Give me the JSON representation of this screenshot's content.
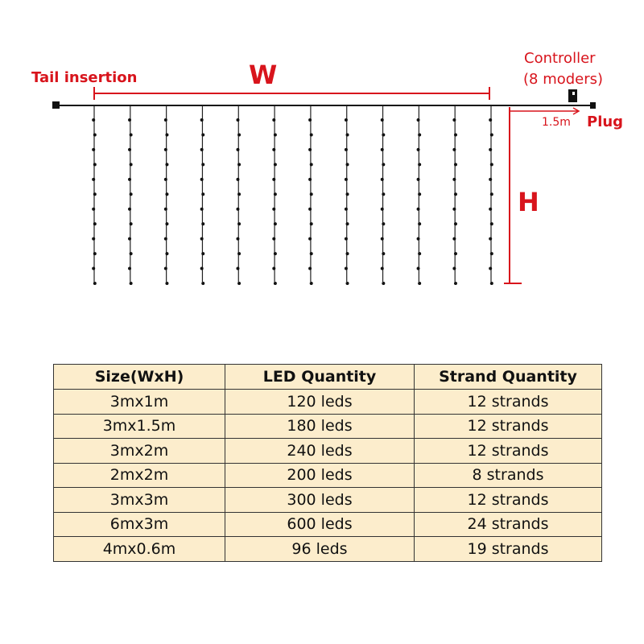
{
  "diagram": {
    "labels": {
      "tail": "Tail insertion",
      "width": "W",
      "height": "H",
      "controller_line1": "Controller",
      "controller_line2": "(8 moders)",
      "cable_length": "1.5m",
      "plug": "Plug"
    },
    "strand_count": 12,
    "bulbs_per_strand": 12,
    "colors": {
      "annotation": "#d8141c",
      "wire": "#111111"
    }
  },
  "table": {
    "headers": [
      "Size(WxH)",
      "LED Quantity",
      "Strand Quantity"
    ],
    "rows": [
      [
        "3mx1m",
        "120 leds",
        "12 strands"
      ],
      [
        "3mx1.5m",
        "180 leds",
        "12 strands"
      ],
      [
        "3mx2m",
        "240 leds",
        "12 strands"
      ],
      [
        "2mx2m",
        "200 leds",
        "8 strands"
      ],
      [
        "3mx3m",
        "300 leds",
        "12 strands"
      ],
      [
        "6mx3m",
        "600 leds",
        "24 strands"
      ],
      [
        "4mx0.6m",
        "96 leds",
        "19 strands"
      ]
    ],
    "colors": {
      "background": "#fcedcc",
      "border": "#333333"
    }
  }
}
